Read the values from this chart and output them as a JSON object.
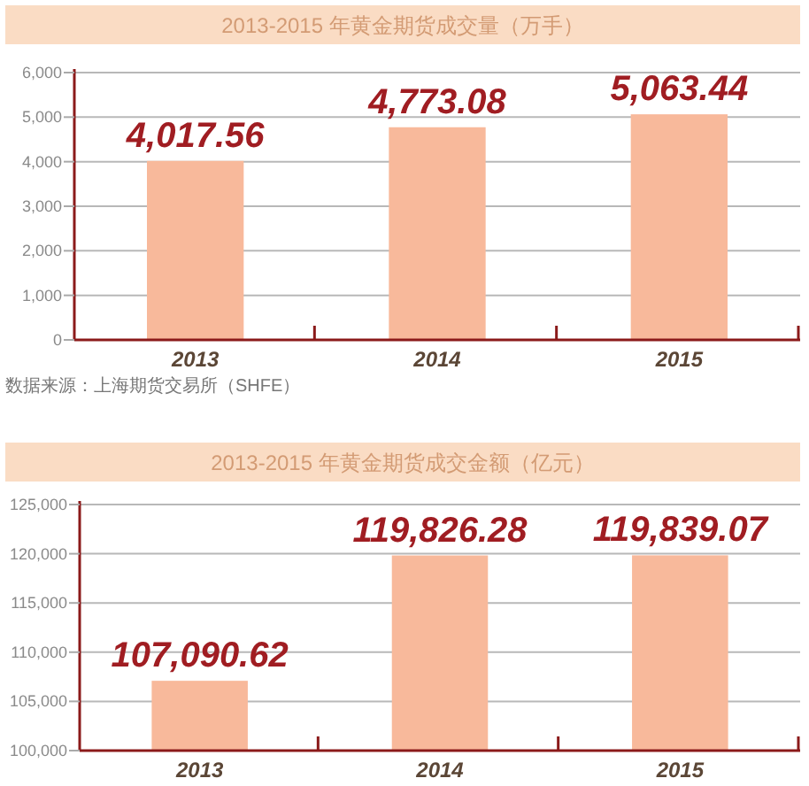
{
  "chart_data": [
    {
      "type": "bar",
      "title": "2013-2015 年黄金期货成交量（万手）",
      "categories": [
        "2013",
        "2014",
        "2015"
      ],
      "values": [
        4017.56,
        4773.08,
        5063.44
      ],
      "value_labels": [
        "4,017.56",
        "4,773.08",
        "5,063.44"
      ],
      "color": "#f8b99b",
      "ylim": [
        0,
        6000
      ],
      "yticks": [
        0,
        {
          "value": 1000,
          "label": "1,000"
        },
        {
          "value": 2000,
          "label": "2,000"
        },
        {
          "value": 3000,
          "label": "3,000"
        },
        {
          "value": 4000,
          "label": "4,000"
        },
        {
          "value": 5000,
          "label": "5,000"
        },
        {
          "value": 6000,
          "label": "6,000"
        }
      ],
      "grid": "y",
      "annotations": [
        "数据来源：上海期货交易所（SHFE）"
      ]
    },
    {
      "type": "bar",
      "title": "2013-2015 年黄金期货成交金额（亿元）",
      "categories": [
        "2013",
        "2014",
        "2015"
      ],
      "values": [
        107090.62,
        119826.28,
        119839.07
      ],
      "value_labels": [
        "107,090.62",
        "119,826.28",
        "119,839.07"
      ],
      "color": "#f8b99b",
      "ylim": [
        100000,
        125000
      ],
      "yticks": [
        {
          "value": 100000,
          "label": "100,000"
        },
        {
          "value": 105000,
          "label": "105,000"
        },
        {
          "value": 110000,
          "label": "110,000"
        },
        {
          "value": 115000,
          "label": "115,000"
        },
        {
          "value": 120000,
          "label": "120,000"
        },
        {
          "value": 125000,
          "label": "125,000"
        }
      ],
      "grid": "y"
    }
  ]
}
